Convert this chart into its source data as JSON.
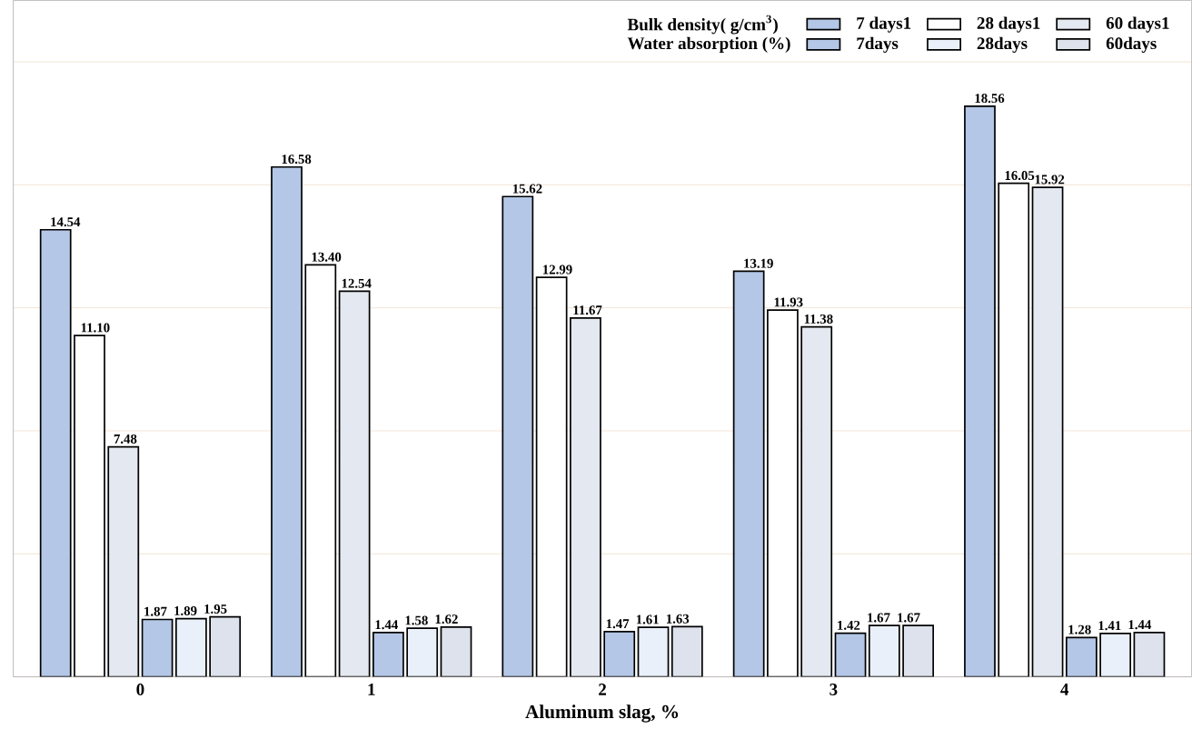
{
  "chart_data": {
    "type": "bar",
    "xlabel": "Aluminum slag, %",
    "categories": [
      "0",
      "1",
      "2",
      "3",
      "4"
    ],
    "annotations": [
      "Bulk density( g/cm$^{3}$)",
      "Water absorption (%)"
    ],
    "ylim": [
      0,
      22
    ],
    "yticks": [
      {
        "value": 0,
        "label": null
      },
      {
        "value": 4,
        "label": null
      },
      {
        "value": 8,
        "label": null
      },
      {
        "value": 12,
        "label": null
      },
      {
        "value": 16,
        "label": null
      },
      {
        "value": 20,
        "label": null
      }
    ],
    "grid": "y",
    "legend": "top right",
    "series": [
      {
        "name": "7 days1",
        "color": "#b4c7e7",
        "values": [
          14.54,
          16.58,
          15.62,
          13.19,
          18.56
        ],
        "value_labels": [
          "14.54",
          "16.58",
          "15.62",
          "13.19",
          "18.56"
        ]
      },
      {
        "name": "28 days1",
        "color": "#ffffff",
        "values": [
          11.1,
          13.4,
          12.99,
          11.93,
          16.05
        ],
        "value_labels": [
          "11.10",
          "13.40",
          "12.99",
          "11.93",
          "16.05"
        ]
      },
      {
        "name": "60 days1",
        "color": "#e4e8f0",
        "values": [
          7.48,
          12.54,
          11.67,
          11.38,
          15.92
        ],
        "value_labels": [
          "7.48",
          "12.54",
          "11.67",
          "11.38",
          "15.92"
        ]
      },
      {
        "name": "7days",
        "color": "#b4c7e7",
        "values": [
          1.87,
          1.44,
          1.47,
          1.42,
          1.28
        ],
        "value_labels": [
          "1.87",
          "1.44",
          "1.47",
          "1.42",
          "1.28"
        ]
      },
      {
        "name": "28days",
        "color": "#eaf0f9",
        "values": [
          1.89,
          1.58,
          1.61,
          1.67,
          1.41
        ],
        "value_labels": [
          "1.89",
          "1.58",
          "1.61",
          "1.67",
          "1.41"
        ]
      },
      {
        "name": "60days",
        "color": "#dde2ec",
        "values": [
          1.95,
          1.62,
          1.63,
          1.67,
          1.44
        ],
        "value_labels": [
          "1.95",
          "1.62",
          "1.63",
          "1.67",
          "1.44"
        ]
      }
    ]
  }
}
